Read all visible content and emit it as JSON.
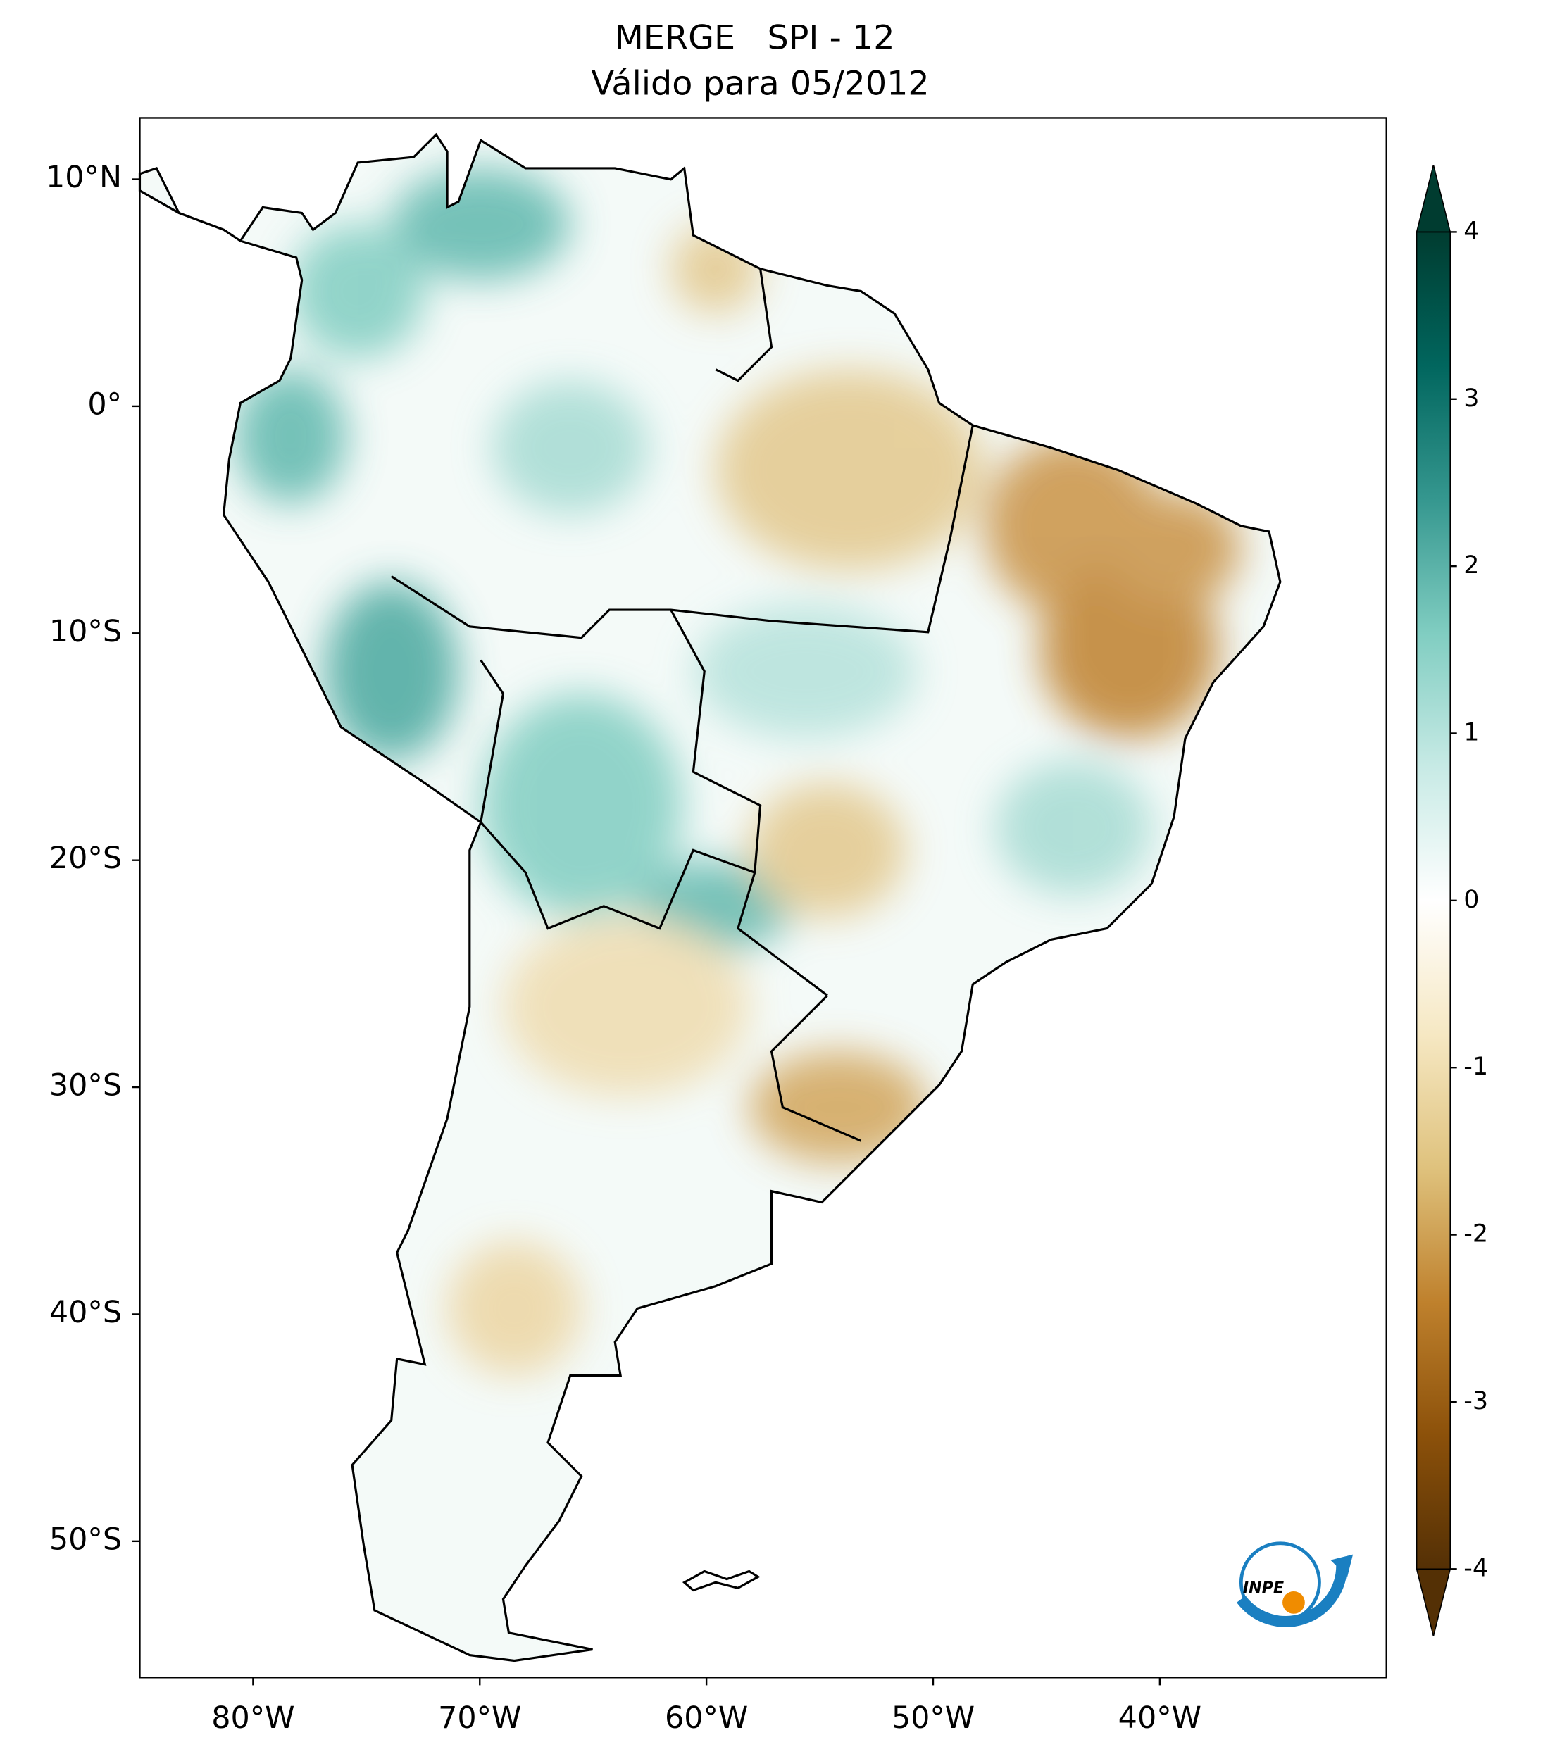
{
  "title": "MERGE   SPI - 12",
  "subtitle": "Válido para 05/2012",
  "map": {
    "xlim": [
      -85,
      -30
    ],
    "ylim": [
      -56,
      12.7
    ],
    "xticks": [
      {
        "value": -80,
        "label": "80°W"
      },
      {
        "value": -70,
        "label": "70°W"
      },
      {
        "value": -60,
        "label": "60°W"
      },
      {
        "value": -50,
        "label": "50°W"
      },
      {
        "value": -40,
        "label": "40°W"
      }
    ],
    "yticks": [
      {
        "value": 10,
        "label": "10°N"
      },
      {
        "value": 0,
        "label": "0°"
      },
      {
        "value": -10,
        "label": "10°S"
      },
      {
        "value": -20,
        "label": "20°S"
      },
      {
        "value": -30,
        "label": "30°S"
      },
      {
        "value": -40,
        "label": "40°S"
      },
      {
        "value": -50,
        "label": "50°S"
      }
    ]
  },
  "colorbar": {
    "lim": [
      -4,
      4
    ],
    "ticks": [
      -4,
      -3,
      -2,
      -1,
      0,
      1,
      2,
      3,
      4
    ],
    "extend": "both",
    "colors": [
      "#543005",
      "#8c510a",
      "#bf812d",
      "#dfc27d",
      "#f6e8c3",
      "#ffffff",
      "#c7eae5",
      "#80cdc1",
      "#35978f",
      "#01665e",
      "#003c30"
    ]
  },
  "logo": "INPE"
}
